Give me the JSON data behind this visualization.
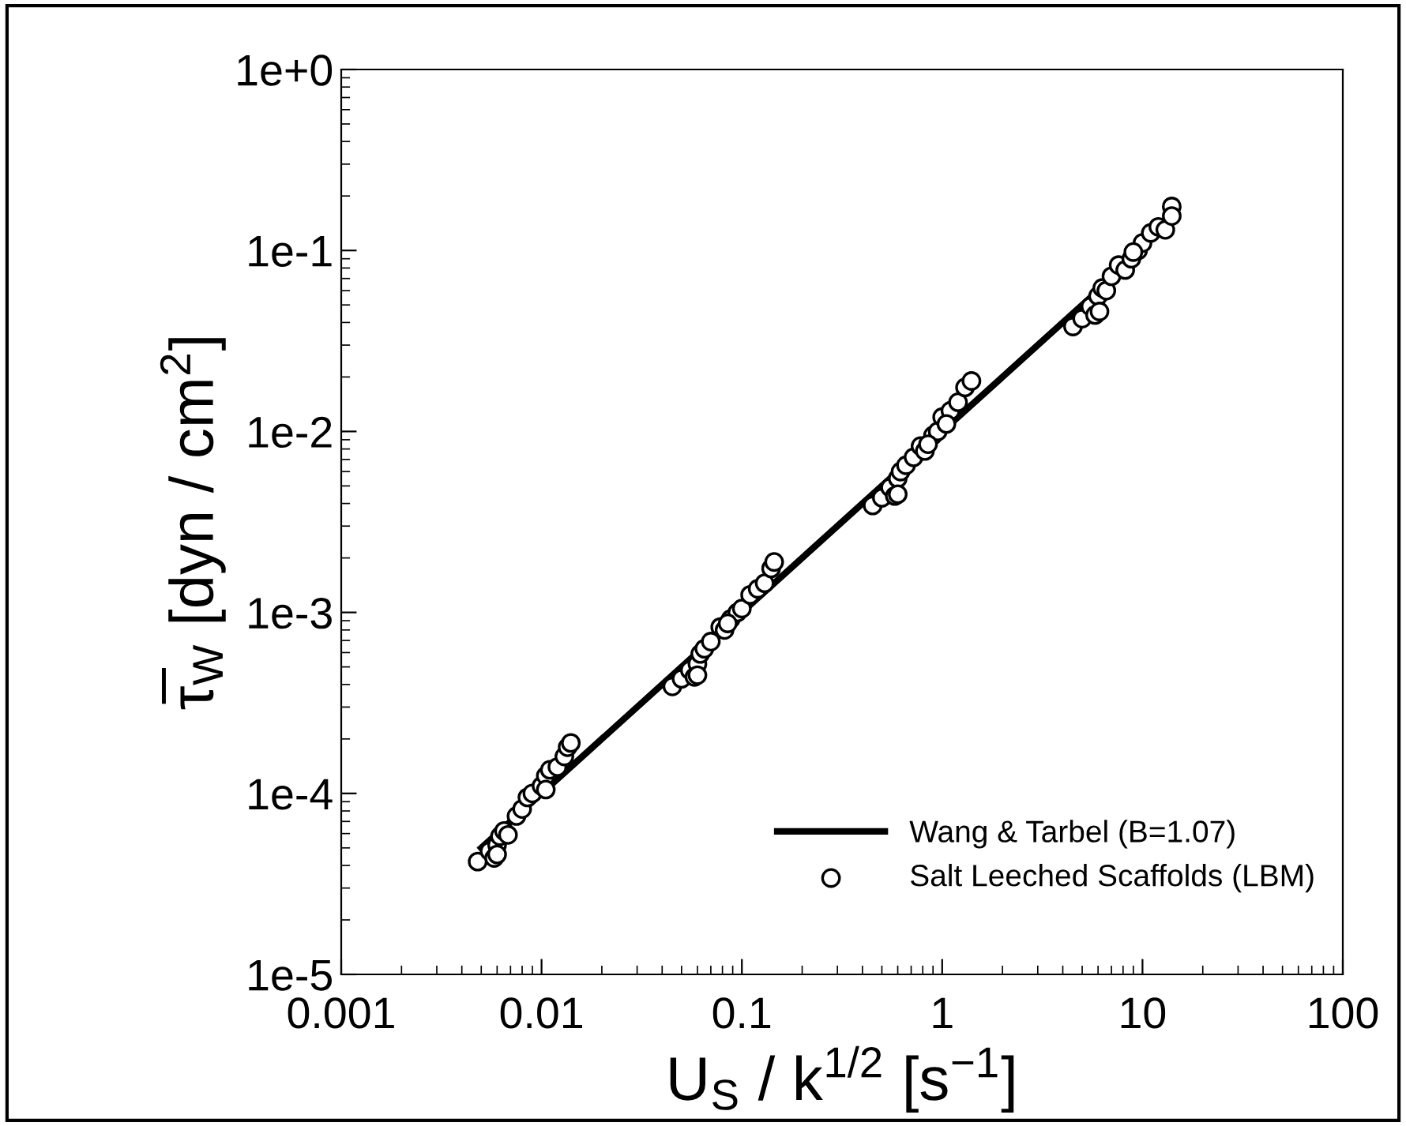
{
  "chart_data": {
    "type": "scatter",
    "xlabel": "U$_{S}$ / k$^{1/2}$ [s$^{−1}$]",
    "ylabel": "τ̅$_{W}$ [dyn / cm$^{2}$]",
    "log": "xy",
    "grid": false,
    "legend": "bottom right",
    "xlim": [
      0.001,
      100
    ],
    "xticks": [
      0.001,
      0.01,
      0.1,
      1,
      10,
      100
    ],
    "ylim": [
      1e-05,
      1
    ],
    "yticks": [
      {
        "value": 1e-05,
        "label": "1e-5"
      },
      {
        "value": 0.0001,
        "label": "1e-4"
      },
      {
        "value": 0.001,
        "label": "1e-3"
      },
      {
        "value": 0.01,
        "label": "1e-2"
      },
      {
        "value": 0.1,
        "label": "1e-1"
      },
      {
        "value": 1,
        "label": "1e+0"
      }
    ],
    "series": [
      {
        "name": "Wang & Tarbel (B=1.07)",
        "type": "line",
        "color": "#000000",
        "line_style": "solid",
        "marker": "none",
        "x": [
          0.005,
          6
        ],
        "values": [
          5e-05,
          0.06
        ]
      },
      {
        "name": "Salt Leeched Scaffolds (LBM)",
        "color": "#000000",
        "marker": "circle",
        "x": [
          0.0048,
          0.0055,
          0.0058,
          0.006,
          0.0062,
          0.0065,
          0.0068,
          0.0075,
          0.008,
          0.0085,
          0.009,
          0.01,
          0.0105,
          0.011,
          0.012,
          0.013,
          0.0135,
          0.014,
          0.006,
          0.0105,
          0.045,
          0.05,
          0.055,
          0.058,
          0.06,
          0.062,
          0.065,
          0.07,
          0.078,
          0.082,
          0.088,
          0.095,
          0.1,
          0.11,
          0.12,
          0.13,
          0.14,
          0.145,
          0.06,
          0.085,
          0.45,
          0.5,
          0.55,
          0.58,
          0.6,
          0.62,
          0.66,
          0.72,
          0.78,
          0.82,
          0.9,
          0.95,
          1.0,
          1.1,
          1.2,
          1.3,
          1.4,
          0.6,
          0.85,
          1.05,
          4.5,
          5.0,
          5.5,
          5.8,
          6.0,
          6.3,
          6.6,
          7.0,
          7.6,
          8.2,
          8.8,
          9.5,
          10,
          11,
          12,
          13,
          14,
          14,
          6.1,
          9.0
        ],
        "values": [
          4.2e-05,
          4.8e-05,
          4.4e-05,
          5.2e-05,
          5.8e-05,
          6.2e-05,
          5.9e-05,
          7.5e-05,
          8.2e-05,
          9.5e-05,
          0.0001,
          0.00011,
          0.000125,
          0.000135,
          0.00014,
          0.00016,
          0.00018,
          0.00019,
          4.6e-05,
          0.000105,
          0.00039,
          0.00043,
          0.00048,
          0.00044,
          0.00052,
          0.00059,
          0.00063,
          0.00069,
          0.00083,
          0.0008,
          0.00092,
          0.001,
          0.00105,
          0.00125,
          0.00135,
          0.00145,
          0.00175,
          0.0019,
          0.00045,
          0.00087,
          0.0039,
          0.0043,
          0.0049,
          0.0044,
          0.0055,
          0.006,
          0.0065,
          0.0072,
          0.0083,
          0.0078,
          0.0095,
          0.01,
          0.012,
          0.013,
          0.0145,
          0.0175,
          0.019,
          0.0045,
          0.0085,
          0.011,
          0.038,
          0.042,
          0.049,
          0.044,
          0.056,
          0.062,
          0.06,
          0.072,
          0.083,
          0.078,
          0.09,
          0.1,
          0.11,
          0.125,
          0.135,
          0.13,
          0.175,
          0.155,
          0.046,
          0.098
        ]
      }
    ]
  }
}
